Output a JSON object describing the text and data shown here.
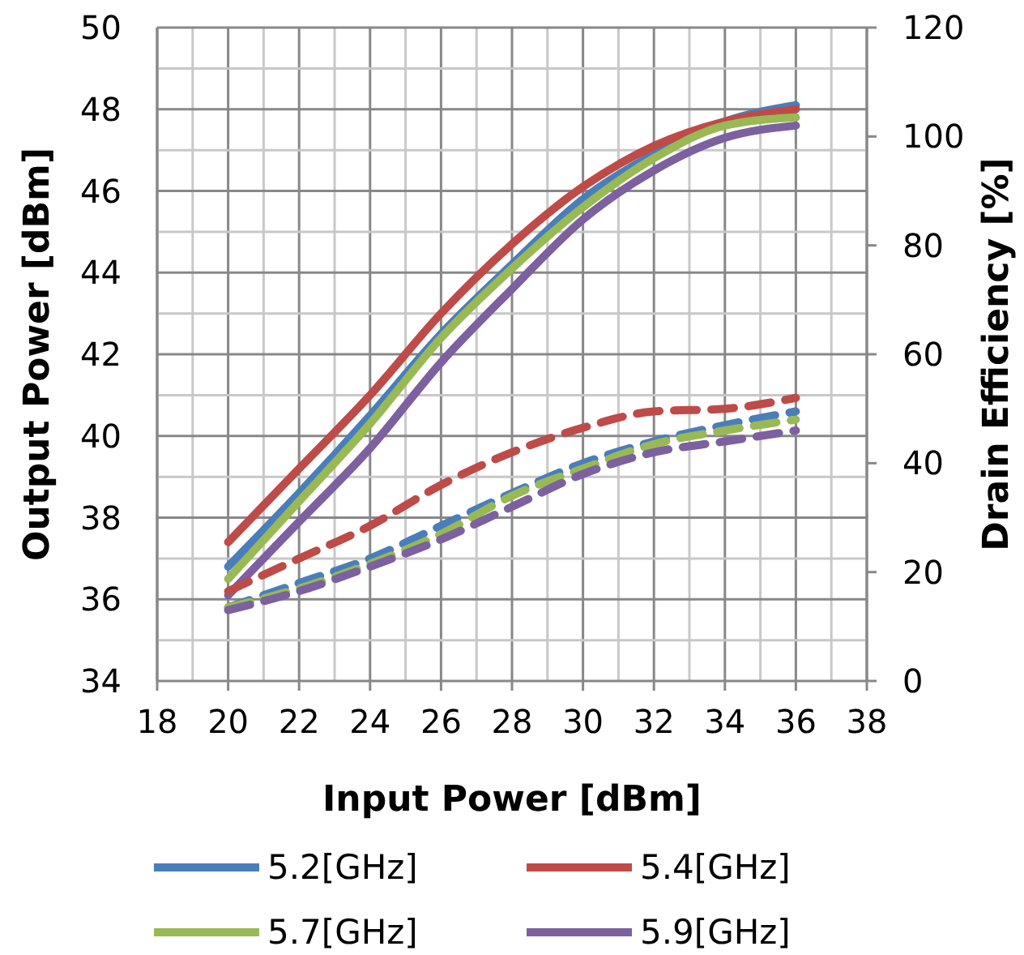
{
  "chart_data": {
    "type": "line",
    "xlabel": "Input  Power [dBm]",
    "ylabel": "Output Power [dBm]",
    "y2label": "Drain Efficiency [%]",
    "x": [
      20,
      22,
      24,
      26,
      28,
      30,
      32,
      34,
      36
    ],
    "xlim": [
      18,
      38
    ],
    "xticks": [
      18,
      20,
      22,
      24,
      26,
      28,
      30,
      32,
      34,
      36,
      38
    ],
    "ylim": [
      34,
      50
    ],
    "yticks": [
      34,
      36,
      38,
      40,
      42,
      44,
      46,
      48,
      50
    ],
    "y2lim": [
      0,
      120
    ],
    "y2ticks": [
      0,
      20,
      40,
      60,
      80,
      100,
      120
    ],
    "grid": true,
    "legend": "bottom",
    "marker": "none",
    "series": [
      {
        "name": "5.2[GHz]",
        "color": "#4a7ebb",
        "line_style": "solid",
        "values": [
          36.8,
          38.6,
          40.5,
          42.5,
          44.2,
          45.8,
          46.9,
          47.7,
          48.1
        ]
      },
      {
        "name": "5.4[GHz]",
        "color": "#be4b48",
        "line_style": "solid",
        "values": [
          37.4,
          39.2,
          41.0,
          43.0,
          44.7,
          46.1,
          47.1,
          47.7,
          48.0
        ]
      },
      {
        "name": "5.7[GHz]",
        "color": "#98b954",
        "line_style": "solid",
        "values": [
          36.5,
          38.4,
          40.3,
          42.4,
          44.1,
          45.6,
          46.8,
          47.6,
          47.8
        ]
      },
      {
        "name": "5.9[GHz]",
        "color": "#7d60a0",
        "line_style": "solid",
        "values": [
          36.1,
          37.9,
          39.7,
          41.8,
          43.6,
          45.3,
          46.5,
          47.3,
          47.6
        ]
      },
      {
        "color": "#4a7ebb",
        "line_style": "dashed",
        "axis": "y2",
        "values": [
          13.5,
          18,
          22.5,
          28.5,
          34.5,
          40,
          44,
          47,
          49.5
        ]
      },
      {
        "color": "#be4b48",
        "line_style": "dashed",
        "axis": "y2",
        "values": [
          16.5,
          22.5,
          28.5,
          36,
          42,
          46.5,
          49.5,
          50,
          52
        ]
      },
      {
        "color": "#98b954",
        "line_style": "dashed",
        "axis": "y2",
        "values": [
          13.5,
          17,
          21.5,
          27,
          34,
          39,
          43.5,
          46,
          48
        ]
      },
      {
        "color": "#7d60a0",
        "line_style": "dashed",
        "axis": "y2",
        "values": [
          13,
          16.5,
          21,
          26,
          32,
          38,
          42,
          44,
          46
        ]
      }
    ]
  }
}
